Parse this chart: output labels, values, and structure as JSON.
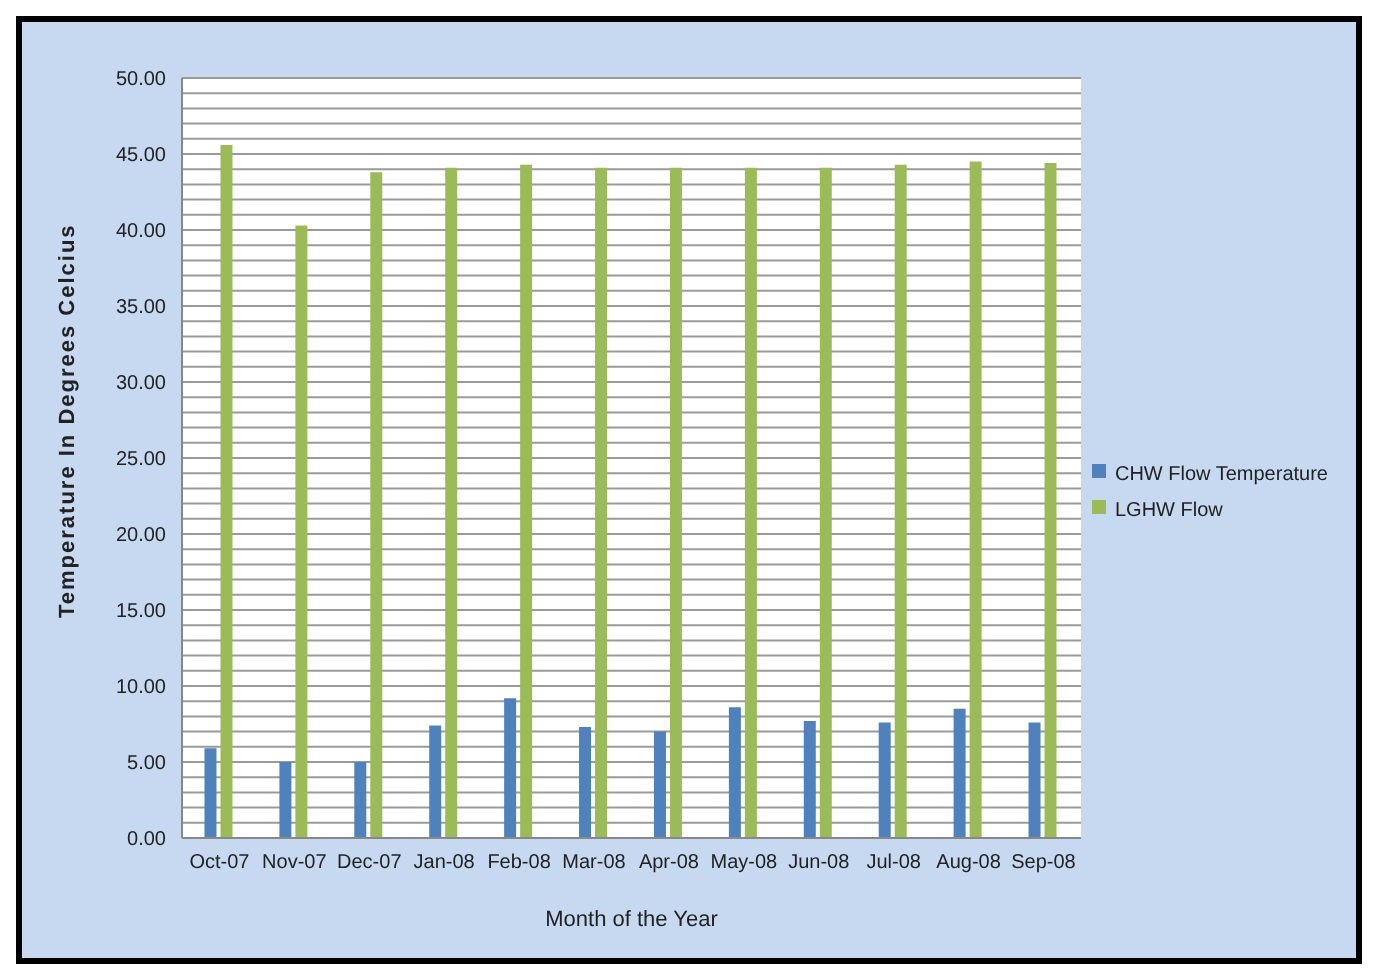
{
  "chart_data": {
    "type": "bar",
    "xlabel": "Month of the Year",
    "ylabel": "Temperature In Degrees Celcius",
    "categories": [
      "Oct-07",
      "Nov-07",
      "Dec-07",
      "Jan-08",
      "Feb-08",
      "Mar-08",
      "Apr-08",
      "May-08",
      "Jun-08",
      "Jul-08",
      "Aug-08",
      "Sep-08"
    ],
    "series": [
      {
        "name": "CHW Flow Temperature",
        "color": "#4f81bd",
        "values": [
          5.9,
          5.0,
          5.0,
          7.4,
          9.2,
          7.3,
          7.0,
          8.6,
          7.7,
          7.6,
          8.5,
          7.6
        ]
      },
      {
        "name": "LGHW Flow",
        "color": "#9bbb59",
        "values": [
          45.6,
          40.3,
          43.8,
          44.1,
          44.3,
          44.1,
          44.1,
          44.1,
          44.1,
          44.3,
          44.5,
          44.4
        ]
      }
    ],
    "ylim": [
      0,
      50
    ],
    "yticks": [
      {
        "value": 0,
        "label": "0.00"
      },
      {
        "value": 1,
        "label": null
      },
      {
        "value": 2,
        "label": null
      },
      {
        "value": 3,
        "label": null
      },
      {
        "value": 4,
        "label": null
      },
      {
        "value": 5,
        "label": "5.00"
      },
      {
        "value": 6,
        "label": null
      },
      {
        "value": 7,
        "label": null
      },
      {
        "value": 8,
        "label": null
      },
      {
        "value": 9,
        "label": null
      },
      {
        "value": 10,
        "label": "10.00"
      },
      {
        "value": 11,
        "label": null
      },
      {
        "value": 12,
        "label": null
      },
      {
        "value": 13,
        "label": null
      },
      {
        "value": 14,
        "label": null
      },
      {
        "value": 15,
        "label": "15.00"
      },
      {
        "value": 16,
        "label": null
      },
      {
        "value": 17,
        "label": null
      },
      {
        "value": 18,
        "label": null
      },
      {
        "value": 19,
        "label": null
      },
      {
        "value": 20,
        "label": "20.00"
      },
      {
        "value": 21,
        "label": null
      },
      {
        "value": 22,
        "label": null
      },
      {
        "value": 23,
        "label": null
      },
      {
        "value": 24,
        "label": null
      },
      {
        "value": 25,
        "label": "25.00"
      },
      {
        "value": 26,
        "label": null
      },
      {
        "value": 27,
        "label": null
      },
      {
        "value": 28,
        "label": null
      },
      {
        "value": 29,
        "label": null
      },
      {
        "value": 30,
        "label": "30.00"
      },
      {
        "value": 31,
        "label": null
      },
      {
        "value": 32,
        "label": null
      },
      {
        "value": 33,
        "label": null
      },
      {
        "value": 34,
        "label": null
      },
      {
        "value": 35,
        "label": "35.00"
      },
      {
        "value": 36,
        "label": null
      },
      {
        "value": 37,
        "label": null
      },
      {
        "value": 38,
        "label": null
      },
      {
        "value": 39,
        "label": null
      },
      {
        "value": 40,
        "label": "40.00"
      },
      {
        "value": 41,
        "label": null
      },
      {
        "value": 42,
        "label": null
      },
      {
        "value": 43,
        "label": null
      },
      {
        "value": 44,
        "label": null
      },
      {
        "value": 45,
        "label": "45.00"
      },
      {
        "value": 46,
        "label": null
      },
      {
        "value": 47,
        "label": null
      },
      {
        "value": 48,
        "label": null
      },
      {
        "value": 49,
        "label": null
      },
      {
        "value": 50,
        "label": "50.00"
      }
    ],
    "grid": "y",
    "legend": "right"
  }
}
